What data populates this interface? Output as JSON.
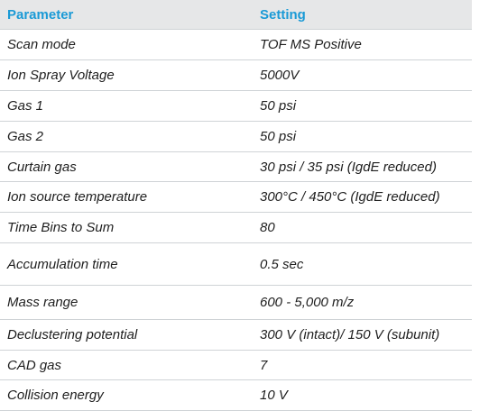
{
  "table": {
    "header": {
      "parameter": "Parameter",
      "setting": "Setting"
    },
    "rows": [
      {
        "parameter": "Scan mode",
        "setting": "TOF MS Positive"
      },
      {
        "parameter": "Ion Spray Voltage",
        "setting": "5000V"
      },
      {
        "parameter": "Gas 1",
        "setting": "50 psi"
      },
      {
        "parameter": "Gas 2",
        "setting": "50 psi"
      },
      {
        "parameter": "Curtain gas",
        "setting": "30 psi / 35 psi (IgdE reduced)"
      },
      {
        "parameter": "Ion source temperature",
        "setting": "300°C / 450°C (IgdE reduced)"
      },
      {
        "parameter": "Time Bins to Sum",
        "setting": "80"
      },
      {
        "parameter": "Accumulation time",
        "setting": "0.5 sec"
      },
      {
        "parameter": "Mass range",
        "setting": "600 - 5,000 m/z"
      },
      {
        "parameter": "Declustering potential",
        "setting": "300 V (intact)/ 150 V (subunit)"
      },
      {
        "parameter": "CAD gas",
        "setting": "7"
      },
      {
        "parameter": "Collision energy",
        "setting": "10 V"
      }
    ]
  },
  "colors": {
    "header_bg": "#e6e7e8",
    "header_text": "#1a9ad6",
    "body_text": "#1e1e1e",
    "rule": "#cfd3d6"
  }
}
